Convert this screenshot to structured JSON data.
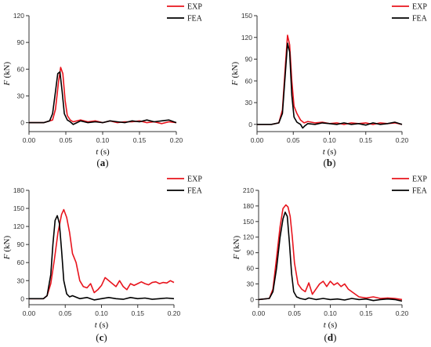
{
  "colors": {
    "exp": "#e8141d",
    "fea": "#000000",
    "axis": "#333333"
  },
  "chart_data": [
    {
      "type": "line",
      "panel_label": "a",
      "xlabel_var": "t",
      "xlabel_unit": " (s)",
      "ylabel_var": "F",
      "ylabel_unit": " (kN)",
      "xlim": [
        0.0,
        0.2
      ],
      "ylim": [
        -10,
        120
      ],
      "xticks": [
        "0.00",
        "0.05",
        "0.10",
        "0.15",
        "0.20"
      ],
      "yticks": [
        "0",
        "30",
        "60",
        "90",
        "120"
      ],
      "legend": [
        "EXP",
        "FEA"
      ],
      "series": [
        {
          "name": "EXP",
          "color": "#e8141d",
          "x": [
            0.0,
            0.02,
            0.032,
            0.036,
            0.04,
            0.043,
            0.046,
            0.049,
            0.052,
            0.056,
            0.06,
            0.07,
            0.08,
            0.09,
            0.1,
            0.11,
            0.12,
            0.13,
            0.14,
            0.15,
            0.16,
            0.17,
            0.18,
            0.19,
            0.2
          ],
          "y": [
            0,
            0,
            3,
            15,
            45,
            62,
            55,
            25,
            8,
            3,
            1,
            3,
            1,
            2,
            0,
            2,
            0,
            1,
            1,
            2,
            0,
            1,
            -1,
            1,
            0
          ]
        },
        {
          "name": "FEA",
          "color": "#000000",
          "x": [
            0.0,
            0.02,
            0.028,
            0.032,
            0.036,
            0.039,
            0.042,
            0.045,
            0.048,
            0.052,
            0.056,
            0.06,
            0.065,
            0.07,
            0.08,
            0.09,
            0.1,
            0.11,
            0.12,
            0.13,
            0.14,
            0.15,
            0.16,
            0.17,
            0.18,
            0.19,
            0.2
          ],
          "y": [
            0,
            0,
            2,
            10,
            35,
            55,
            57,
            35,
            10,
            3,
            1,
            -2,
            0,
            2,
            0,
            1,
            0,
            2,
            1,
            0,
            2,
            1,
            3,
            1,
            2,
            3,
            0
          ]
        }
      ]
    },
    {
      "type": "line",
      "panel_label": "b",
      "xlabel_var": "t",
      "xlabel_unit": " (s)",
      "ylabel_var": "F",
      "ylabel_unit": " (kN)",
      "xlim": [
        0.0,
        0.2
      ],
      "ylim": [
        -10,
        150
      ],
      "xticks": [
        "0.00",
        "0.05",
        "0.10",
        "0.15",
        "0.20"
      ],
      "yticks": [
        "0",
        "30",
        "60",
        "90",
        "120",
        "150"
      ],
      "legend": [
        "EXP",
        "FEA"
      ],
      "series": [
        {
          "name": "EXP",
          "color": "#e8141d",
          "x": [
            0.0,
            0.02,
            0.03,
            0.035,
            0.039,
            0.042,
            0.045,
            0.048,
            0.051,
            0.055,
            0.06,
            0.065,
            0.07,
            0.08,
            0.09,
            0.1,
            0.11,
            0.12,
            0.13,
            0.14,
            0.15,
            0.16,
            0.17,
            0.18,
            0.19,
            0.2
          ],
          "y": [
            0,
            0,
            2,
            20,
            80,
            123,
            110,
            60,
            25,
            15,
            6,
            2,
            4,
            2,
            3,
            1,
            2,
            0,
            2,
            1,
            2,
            0,
            2,
            1,
            2,
            0
          ]
        },
        {
          "name": "FEA",
          "color": "#000000",
          "x": [
            0.0,
            0.02,
            0.03,
            0.035,
            0.039,
            0.042,
            0.045,
            0.048,
            0.051,
            0.055,
            0.06,
            0.063,
            0.066,
            0.07,
            0.08,
            0.09,
            0.1,
            0.11,
            0.12,
            0.13,
            0.14,
            0.15,
            0.16,
            0.17,
            0.18,
            0.19,
            0.2
          ],
          "y": [
            0,
            0,
            2,
            15,
            70,
            112,
            100,
            40,
            10,
            3,
            0,
            -5,
            -2,
            1,
            0,
            2,
            1,
            0,
            2,
            0,
            1,
            -1,
            2,
            0,
            1,
            3,
            0
          ]
        }
      ]
    },
    {
      "type": "line",
      "panel_label": "c",
      "xlabel_var": "t",
      "xlabel_unit": " (s)",
      "ylabel_var": "F",
      "ylabel_unit": " (kN)",
      "xlim": [
        0.0,
        0.2
      ],
      "ylim": [
        -10,
        180
      ],
      "xticks": [
        "0.00",
        "0.05",
        "0.10",
        "0.15",
        "0.20"
      ],
      "yticks": [
        "0",
        "30",
        "60",
        "90",
        "120",
        "150",
        "180"
      ],
      "legend": [
        "EXP",
        "FEA"
      ],
      "series": [
        {
          "name": "EXP",
          "color": "#e8141d",
          "x": [
            0.0,
            0.02,
            0.025,
            0.03,
            0.035,
            0.04,
            0.045,
            0.048,
            0.052,
            0.056,
            0.06,
            0.065,
            0.07,
            0.075,
            0.08,
            0.085,
            0.09,
            0.095,
            0.1,
            0.105,
            0.11,
            0.115,
            0.12,
            0.125,
            0.13,
            0.135,
            0.14,
            0.145,
            0.15,
            0.155,
            0.16,
            0.165,
            0.17,
            0.175,
            0.18,
            0.185,
            0.19,
            0.195,
            0.2
          ],
          "y": [
            0,
            0,
            5,
            25,
            65,
            110,
            140,
            148,
            135,
            110,
            75,
            60,
            30,
            20,
            18,
            25,
            10,
            15,
            22,
            35,
            30,
            25,
            20,
            30,
            20,
            15,
            25,
            22,
            25,
            28,
            25,
            23,
            27,
            28,
            25,
            27,
            26,
            30,
            27
          ]
        },
        {
          "name": "FEA",
          "color": "#000000",
          "x": [
            0.0,
            0.02,
            0.025,
            0.03,
            0.033,
            0.036,
            0.039,
            0.042,
            0.045,
            0.048,
            0.052,
            0.056,
            0.06,
            0.07,
            0.08,
            0.09,
            0.1,
            0.11,
            0.12,
            0.13,
            0.14,
            0.15,
            0.16,
            0.17,
            0.18,
            0.19,
            0.2
          ],
          "y": [
            0,
            0,
            5,
            40,
            90,
            130,
            138,
            125,
            80,
            30,
            8,
            3,
            5,
            0,
            2,
            -2,
            0,
            2,
            0,
            -1,
            2,
            0,
            1,
            -1,
            0,
            1,
            0
          ]
        }
      ]
    },
    {
      "type": "line",
      "panel_label": "d",
      "xlabel_var": "t",
      "xlabel_unit": " (s)",
      "ylabel_var": "F",
      "ylabel_unit": " (kN)",
      "xlim": [
        0.0,
        0.2
      ],
      "ylim": [
        -10,
        210
      ],
      "xticks": [
        "0.00",
        "0.05",
        "0.10",
        "0.15",
        "0.20"
      ],
      "yticks": [
        "0",
        "30",
        "60",
        "90",
        "120",
        "150",
        "180",
        "210"
      ],
      "legend": [
        "EXP",
        "FEA"
      ],
      "series": [
        {
          "name": "EXP",
          "color": "#e8141d",
          "x": [
            0.0,
            0.015,
            0.02,
            0.025,
            0.03,
            0.034,
            0.038,
            0.041,
            0.044,
            0.047,
            0.05,
            0.055,
            0.06,
            0.065,
            0.07,
            0.075,
            0.08,
            0.085,
            0.09,
            0.095,
            0.1,
            0.105,
            0.11,
            0.115,
            0.12,
            0.125,
            0.13,
            0.14,
            0.15,
            0.16,
            0.17,
            0.18,
            0.19,
            0.2
          ],
          "y": [
            0,
            2,
            20,
            80,
            140,
            175,
            182,
            178,
            160,
            120,
            70,
            30,
            20,
            15,
            32,
            10,
            20,
            30,
            35,
            25,
            35,
            28,
            32,
            25,
            30,
            20,
            15,
            5,
            3,
            5,
            2,
            3,
            2,
            0
          ]
        },
        {
          "name": "FEA",
          "color": "#000000",
          "x": [
            0.0,
            0.015,
            0.02,
            0.025,
            0.03,
            0.034,
            0.037,
            0.04,
            0.043,
            0.046,
            0.049,
            0.053,
            0.058,
            0.065,
            0.07,
            0.08,
            0.09,
            0.1,
            0.11,
            0.12,
            0.13,
            0.14,
            0.15,
            0.16,
            0.17,
            0.18,
            0.19,
            0.2
          ],
          "y": [
            0,
            2,
            15,
            60,
            120,
            155,
            168,
            160,
            110,
            50,
            15,
            5,
            2,
            0,
            3,
            0,
            2,
            0,
            1,
            -1,
            2,
            0,
            1,
            -2,
            0,
            1,
            0,
            -3
          ]
        }
      ]
    }
  ]
}
